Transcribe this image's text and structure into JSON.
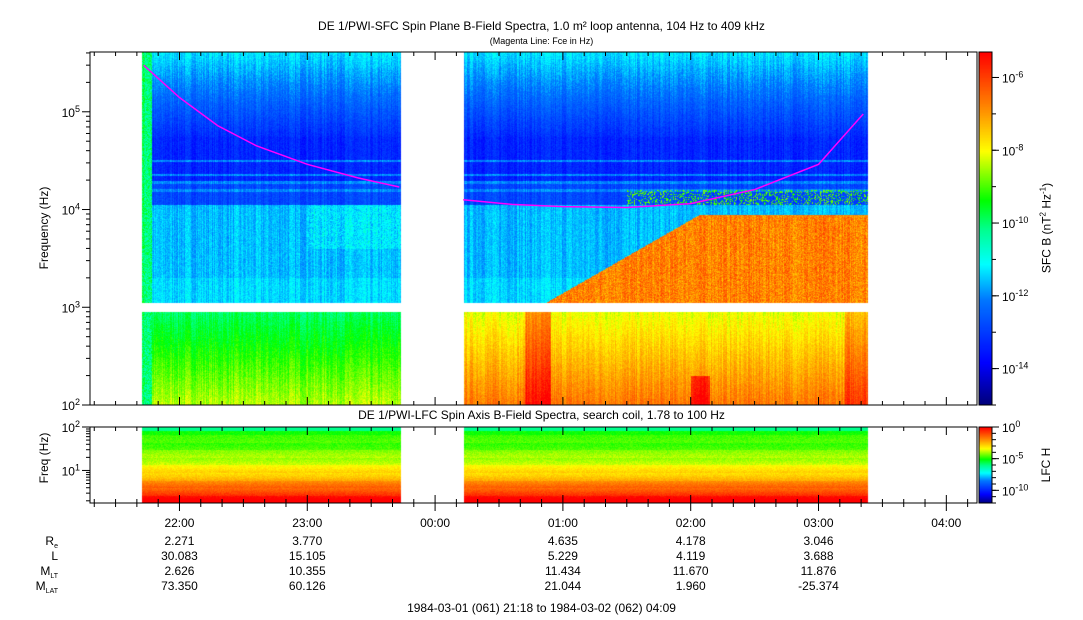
{
  "chart_data": [
    {
      "type": "heatmap",
      "title": "DE 1/PWI-SFC  Spin Plane B-Field Spectra, 1.0 m² loop antenna, 104 Hz to 409 kHz",
      "subtitle": "(Magenta Line: Fce in Hz)",
      "ylabel": "Frequency (Hz)",
      "yscale": "log",
      "ylim": [
        100,
        409000
      ],
      "yticks": [
        {
          "base": "10",
          "exp": "2"
        },
        {
          "base": "10",
          "exp": "3"
        },
        {
          "base": "10",
          "exp": "4"
        },
        {
          "base": "10",
          "exp": "5"
        }
      ],
      "colorbar": {
        "label": "SFC B (nT",
        "label_sup1": "2",
        "label_mid": " Hz",
        "label_sup2": "-1",
        "label_end": ")",
        "range_log10": [
          -15,
          -5.3
        ],
        "ticks": [
          {
            "base": "10",
            "exp": "-6"
          },
          {
            "base": "10",
            "exp": "-8"
          },
          {
            "base": "10",
            "exp": "-10"
          },
          {
            "base": "10",
            "exp": "-12"
          },
          {
            "base": "10",
            "exp": "-14"
          }
        ]
      },
      "data_intervals_hours": [
        [
          21.7,
          23.73
        ],
        [
          24.22,
          27.38
        ]
      ],
      "fce_series": {
        "name": "Fce",
        "color": "#ff00ff",
        "segments": [
          {
            "t": [
              21.72,
              22.0,
              22.3,
              22.6,
              23.0,
              23.4,
              23.72
            ],
            "f": [
              300000,
              140000,
              72000,
              45000,
              29000,
              21000,
              17000
            ]
          },
          {
            "t": [
              24.22,
              24.6,
              25.0,
              25.5,
              26.0,
              26.5,
              27.0,
              27.35
            ],
            "f": [
              12600,
              11300,
              10700,
              10500,
              11500,
              16000,
              29000,
              95000
            ]
          }
        ]
      }
    },
    {
      "type": "heatmap",
      "title": "DE 1/PWI-LFC  Spin Axis B-Field Spectra, search coil, 1.78 to 100 Hz",
      "ylabel": "Freq (Hz)",
      "yscale": "log",
      "ylim": [
        1.78,
        100
      ],
      "yticks": [
        {
          "base": "10",
          "exp": "2"
        },
        {
          "base": "10",
          "exp": "1"
        }
      ],
      "colorbar": {
        "label": "LFC H",
        "range_log10": [
          -12,
          0
        ],
        "ticks": [
          {
            "base": "10",
            "exp": "0"
          },
          {
            "base": "10",
            "exp": "-5"
          },
          {
            "base": "10",
            "exp": "-10"
          }
        ]
      },
      "data_intervals_hours": [
        [
          21.7,
          23.73
        ],
        [
          24.22,
          27.38
        ]
      ]
    }
  ],
  "x_axis": {
    "range_hours": [
      21.3,
      28.24
    ],
    "ticks": [
      {
        "t": 22,
        "label": "22:00"
      },
      {
        "t": 23,
        "label": "23:00"
      },
      {
        "t": 24,
        "label": "00:00"
      },
      {
        "t": 25,
        "label": "01:00"
      },
      {
        "t": 26,
        "label": "02:00"
      },
      {
        "t": 27,
        "label": "03:00"
      },
      {
        "t": 28,
        "label": "04:00"
      }
    ]
  },
  "ephemeris": {
    "rows": [
      {
        "label": "R",
        "sub": "e",
        "values": [
          "2.271",
          "3.770",
          "",
          "4.635",
          "4.178",
          "3.046",
          ""
        ]
      },
      {
        "label": "L",
        "sub": "",
        "values": [
          "30.083",
          "15.105",
          "",
          "5.229",
          "4.119",
          "3.688",
          ""
        ]
      },
      {
        "label": "M",
        "sub": "LT",
        "values": [
          "2.626",
          "10.355",
          "",
          "11.434",
          "11.670",
          "11.876",
          ""
        ]
      },
      {
        "label": "M",
        "sub": "LAT",
        "values": [
          "73.350",
          "60.126",
          "",
          "21.044",
          "1.960",
          "-25.374",
          ""
        ]
      }
    ]
  },
  "time_range": "1984-03-01 (061) 21:18 to 1984-03-02 (062) 04:09"
}
